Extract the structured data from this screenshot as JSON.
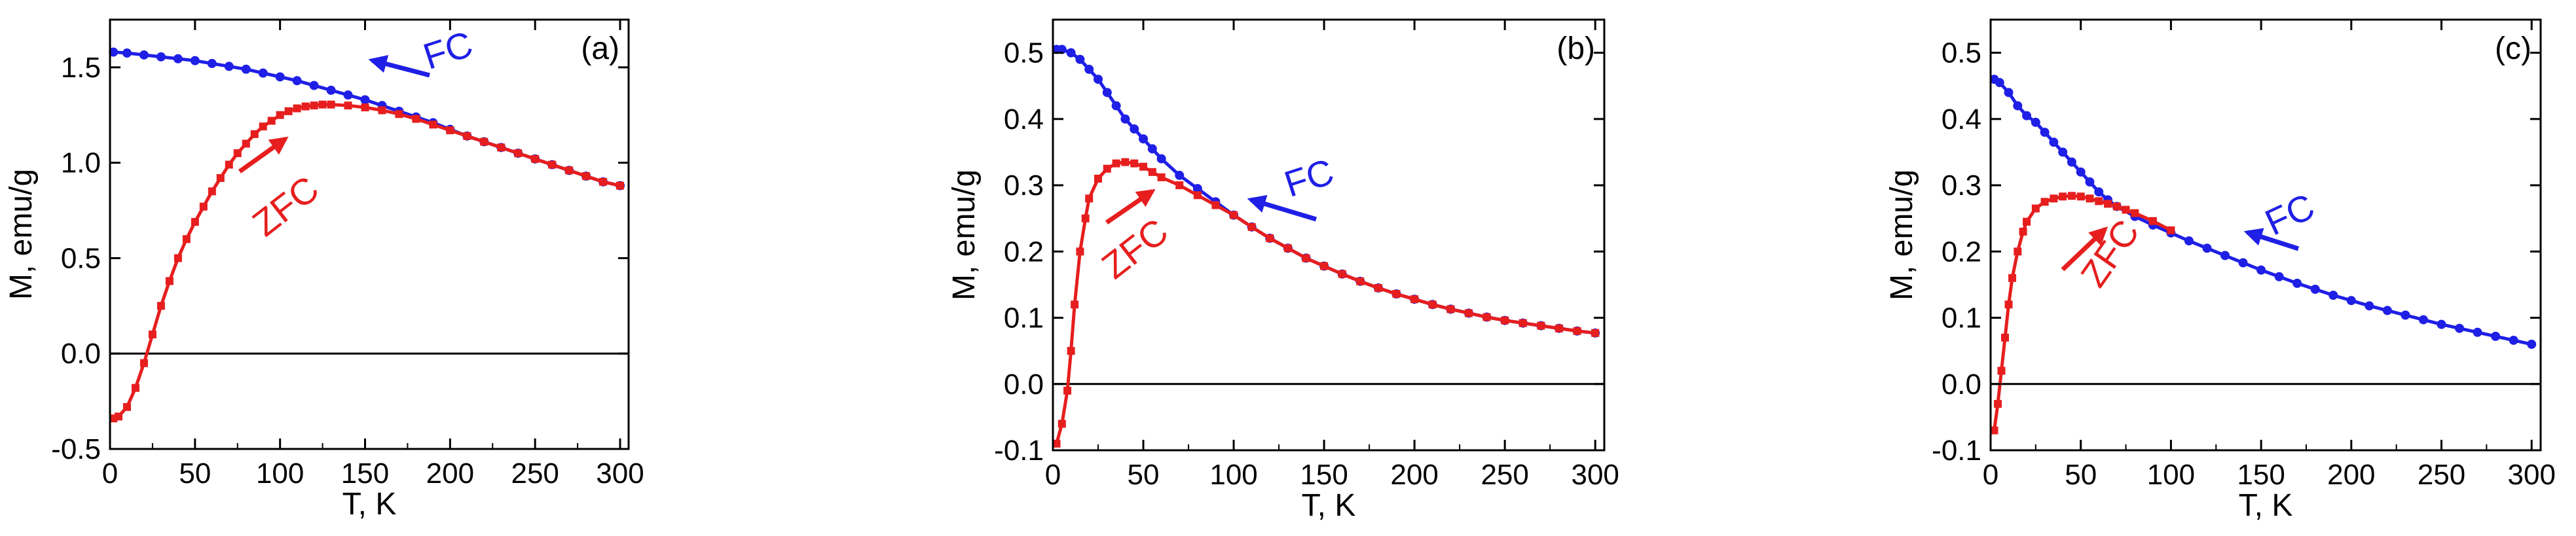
{
  "chart_data": [
    {
      "panel_label": "(a)",
      "type": "scatter",
      "xlabel": "T, K",
      "ylabel": "M, emu/g",
      "xlim": [
        0,
        305
      ],
      "ylim": [
        -0.5,
        1.75
      ],
      "xticks": [
        0,
        50,
        100,
        150,
        200,
        250,
        300
      ],
      "yticks": [
        -0.5,
        0.0,
        0.5,
        1.0,
        1.5
      ],
      "ytick_labels": [
        "-0.5",
        "0.0",
        "0.5",
        "1.0",
        "1.5"
      ],
      "zero_line": true,
      "series": [
        {
          "name": "FC",
          "color": "#1f1fe6",
          "marker": "circle",
          "x": [
            2,
            10,
            20,
            30,
            40,
            50,
            60,
            70,
            80,
            90,
            100,
            110,
            120,
            130,
            140,
            150,
            160,
            170,
            180,
            190,
            200,
            210,
            220,
            230,
            240,
            250,
            260,
            270,
            280,
            290,
            300
          ],
          "y": [
            1.58,
            1.575,
            1.565,
            1.555,
            1.545,
            1.535,
            1.52,
            1.505,
            1.49,
            1.47,
            1.45,
            1.43,
            1.405,
            1.38,
            1.355,
            1.33,
            1.3,
            1.27,
            1.24,
            1.21,
            1.175,
            1.14,
            1.11,
            1.08,
            1.05,
            1.02,
            0.99,
            0.96,
            0.93,
            0.9,
            0.88
          ]
        },
        {
          "name": "ZFC",
          "color": "#e61e1e",
          "marker": "square",
          "x": [
            2,
            5,
            10,
            15,
            20,
            25,
            30,
            35,
            40,
            45,
            50,
            55,
            60,
            65,
            70,
            75,
            80,
            85,
            90,
            95,
            100,
            105,
            110,
            115,
            120,
            125,
            130,
            140,
            150,
            160,
            170,
            180,
            190,
            200,
            210,
            220,
            230,
            240,
            250,
            260,
            270,
            280,
            290,
            300
          ],
          "y": [
            -0.34,
            -0.33,
            -0.28,
            -0.18,
            -0.05,
            0.1,
            0.25,
            0.38,
            0.5,
            0.6,
            0.69,
            0.77,
            0.85,
            0.92,
            0.99,
            1.05,
            1.1,
            1.15,
            1.19,
            1.22,
            1.25,
            1.27,
            1.285,
            1.295,
            1.3,
            1.305,
            1.305,
            1.3,
            1.29,
            1.275,
            1.255,
            1.23,
            1.2,
            1.17,
            1.14,
            1.11,
            1.08,
            1.05,
            1.02,
            0.99,
            0.96,
            0.93,
            0.9,
            0.88
          ]
        }
      ],
      "annotations": [
        {
          "text": "FC",
          "color": "#1f1fe6"
        },
        {
          "text": "ZFC",
          "color": "#e61e1e"
        }
      ]
    },
    {
      "panel_label": "(b)",
      "type": "scatter",
      "xlabel": "T, K",
      "ylabel": "M, emu/g",
      "xlim": [
        0,
        305
      ],
      "ylim": [
        -0.1,
        0.55
      ],
      "xticks": [
        0,
        50,
        100,
        150,
        200,
        250,
        300
      ],
      "yticks": [
        -0.1,
        0.0,
        0.1,
        0.2,
        0.3,
        0.4,
        0.5
      ],
      "ytick_labels": [
        "-0.1",
        "0.0",
        "0.1",
        "0.2",
        "0.3",
        "0.4",
        "0.5"
      ],
      "zero_line": true,
      "series": [
        {
          "name": "FC",
          "color": "#1f1fe6",
          "marker": "circle",
          "x": [
            2,
            5,
            10,
            15,
            20,
            25,
            30,
            35,
            40,
            45,
            50,
            55,
            60,
            70,
            80,
            90,
            100,
            110,
            120,
            130,
            140,
            150,
            160,
            170,
            180,
            190,
            200,
            210,
            220,
            230,
            240,
            250,
            260,
            270,
            280,
            290,
            300
          ],
          "y": [
            0.505,
            0.505,
            0.5,
            0.49,
            0.475,
            0.46,
            0.44,
            0.42,
            0.4,
            0.385,
            0.37,
            0.355,
            0.34,
            0.315,
            0.295,
            0.275,
            0.255,
            0.237,
            0.22,
            0.205,
            0.19,
            0.178,
            0.166,
            0.155,
            0.145,
            0.136,
            0.128,
            0.12,
            0.113,
            0.107,
            0.101,
            0.096,
            0.092,
            0.088,
            0.084,
            0.08,
            0.077
          ]
        },
        {
          "name": "ZFC",
          "color": "#e61e1e",
          "marker": "square",
          "x": [
            2,
            5,
            8,
            10,
            12,
            15,
            18,
            20,
            25,
            30,
            35,
            40,
            45,
            50,
            55,
            60,
            70,
            80,
            90,
            100,
            110,
            120,
            130,
            140,
            150,
            160,
            170,
            180,
            190,
            200,
            210,
            220,
            230,
            240,
            250,
            260,
            270,
            280,
            290,
            300
          ],
          "y": [
            -0.09,
            -0.06,
            -0.01,
            0.05,
            0.12,
            0.2,
            0.25,
            0.28,
            0.31,
            0.325,
            0.333,
            0.335,
            0.333,
            0.328,
            0.32,
            0.312,
            0.3,
            0.285,
            0.27,
            0.255,
            0.237,
            0.22,
            0.205,
            0.19,
            0.178,
            0.166,
            0.155,
            0.145,
            0.136,
            0.128,
            0.12,
            0.113,
            0.107,
            0.101,
            0.096,
            0.092,
            0.088,
            0.084,
            0.08,
            0.077
          ]
        }
      ],
      "annotations": [
        {
          "text": "FC",
          "color": "#1f1fe6"
        },
        {
          "text": "ZFC",
          "color": "#e61e1e"
        }
      ]
    },
    {
      "panel_label": "(c)",
      "type": "scatter",
      "xlabel": "T, K",
      "ylabel": "M, emu/g",
      "xlim": [
        0,
        305
      ],
      "ylim": [
        -0.1,
        0.55
      ],
      "xticks": [
        0,
        50,
        100,
        150,
        200,
        250,
        300
      ],
      "yticks": [
        -0.1,
        0.0,
        0.1,
        0.2,
        0.3,
        0.4,
        0.5
      ],
      "ytick_labels": [
        "-0.1",
        "0.0",
        "0.1",
        "0.2",
        "0.3",
        "0.4",
        "0.5"
      ],
      "zero_line": true,
      "series": [
        {
          "name": "FC",
          "color": "#1f1fe6",
          "marker": "circle",
          "x": [
            2,
            5,
            10,
            15,
            20,
            25,
            30,
            35,
            40,
            45,
            50,
            55,
            60,
            65,
            70,
            80,
            90,
            100,
            110,
            120,
            130,
            140,
            150,
            160,
            170,
            180,
            190,
            200,
            210,
            220,
            230,
            240,
            250,
            260,
            270,
            280,
            290,
            300
          ],
          "y": [
            0.46,
            0.455,
            0.44,
            0.42,
            0.405,
            0.395,
            0.38,
            0.365,
            0.35,
            0.335,
            0.32,
            0.305,
            0.29,
            0.278,
            0.268,
            0.253,
            0.24,
            0.228,
            0.216,
            0.205,
            0.194,
            0.183,
            0.172,
            0.162,
            0.152,
            0.143,
            0.134,
            0.126,
            0.118,
            0.111,
            0.104,
            0.097,
            0.09,
            0.084,
            0.078,
            0.072,
            0.066,
            0.06
          ]
        },
        {
          "name": "ZFC",
          "color": "#e61e1e",
          "marker": "square",
          "x": [
            2,
            4,
            6,
            8,
            10,
            12,
            15,
            18,
            20,
            25,
            30,
            35,
            40,
            45,
            50,
            55,
            60,
            65,
            70,
            75,
            80,
            90,
            100
          ],
          "y": [
            -0.07,
            -0.03,
            0.02,
            0.07,
            0.12,
            0.16,
            0.2,
            0.23,
            0.245,
            0.265,
            0.275,
            0.28,
            0.283,
            0.284,
            0.283,
            0.28,
            0.276,
            0.272,
            0.268,
            0.263,
            0.258,
            0.246,
            0.232
          ]
        }
      ],
      "annotations": [
        {
          "text": "FC",
          "color": "#1f1fe6"
        },
        {
          "text": "ZFC",
          "color": "#e61e1e"
        }
      ]
    }
  ]
}
